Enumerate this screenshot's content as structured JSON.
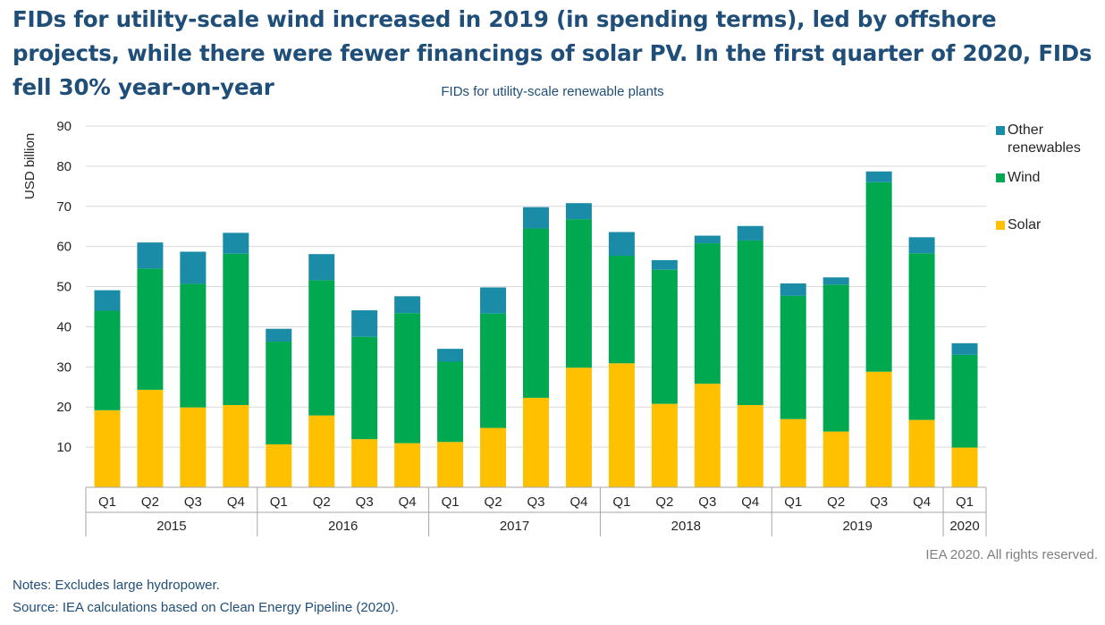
{
  "headline": "FIDs for utility-scale wind increased in 2019 (in spending terms), led by offshore projects, while there were fewer financings of solar PV. In the first quarter of 2020, FIDs fell 30% year-on-year",
  "notes": "Notes: Excludes large hydropower.",
  "source": "Source: IEA calculations based on Clean Energy Pipeline (2020).",
  "credit": "IEA 2020. All rights reserved.",
  "colors": {
    "solar": "#ffc000",
    "wind": "#00a94f",
    "other": "#1b8ca8",
    "grid": "#d9d9d9",
    "axis": "#a6a6a6"
  },
  "chart_data": {
    "type": "bar",
    "stacked": true,
    "title": "FIDs for utility-scale renewable plants",
    "ylabel": "USD billion",
    "ylim": [
      0,
      90
    ],
    "yticks": [
      10,
      20,
      30,
      40,
      50,
      60,
      70,
      80,
      90
    ],
    "grid": true,
    "legend_position": "right",
    "categories": [
      "Q1",
      "Q2",
      "Q3",
      "Q4",
      "Q1",
      "Q2",
      "Q3",
      "Q4",
      "Q1",
      "Q2",
      "Q3",
      "Q4",
      "Q1",
      "Q2",
      "Q3",
      "Q4",
      "Q1",
      "Q2",
      "Q3",
      "Q4",
      "Q1"
    ],
    "groups": [
      {
        "label": "2015",
        "count": 4
      },
      {
        "label": "2016",
        "count": 4
      },
      {
        "label": "2017",
        "count": 4
      },
      {
        "label": "2018",
        "count": 4
      },
      {
        "label": "2019",
        "count": 4
      },
      {
        "label": "2020",
        "count": 1
      }
    ],
    "series": [
      {
        "name": "Solar",
        "values": [
          19.2,
          24.3,
          19.9,
          20.5,
          10.7,
          17.9,
          12.0,
          11.0,
          11.3,
          14.8,
          22.3,
          29.8,
          30.9,
          20.8,
          25.8,
          20.5,
          17.0,
          13.9,
          28.8,
          16.8,
          9.9
        ]
      },
      {
        "name": "Wind",
        "values": [
          24.8,
          30.2,
          30.8,
          37.7,
          25.6,
          33.7,
          25.5,
          32.4,
          20.0,
          28.5,
          42.2,
          37.0,
          26.8,
          33.4,
          35.0,
          41.0,
          30.7,
          36.6,
          47.2,
          41.5,
          23.1
        ]
      },
      {
        "name": "Other renewables",
        "values": [
          5.1,
          6.5,
          8.0,
          5.2,
          3.2,
          6.5,
          6.6,
          4.2,
          3.2,
          6.5,
          5.3,
          4.0,
          5.9,
          2.4,
          1.9,
          3.6,
          3.1,
          1.8,
          2.7,
          4.0,
          2.9
        ]
      }
    ]
  }
}
